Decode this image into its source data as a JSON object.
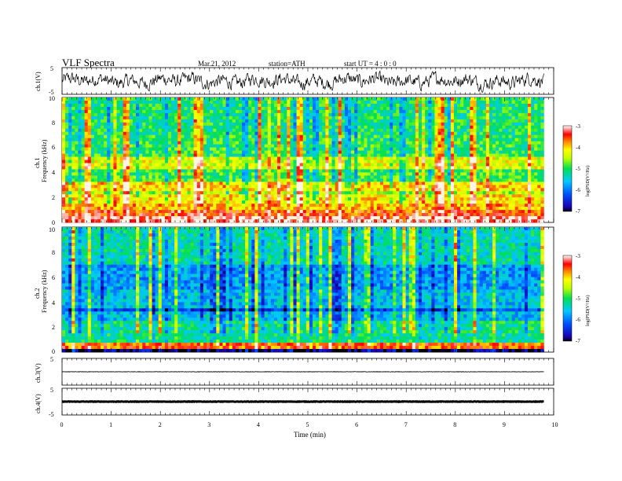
{
  "header": {
    "title": "VLF  Spectra",
    "date": "Mar.21, 2012",
    "station": "station=ATH",
    "start": "start  UT  =   4  : 0  : 0"
  },
  "chart_data": [
    {
      "id": "ch1-waveform",
      "type": "line",
      "ylabel": "ch.1(V)",
      "ylim": [
        -5,
        5
      ],
      "yticks": [
        "5",
        "-5"
      ],
      "xlim": [
        0,
        10
      ],
      "x_end": 9.8,
      "noise_amplitude_v": 2.5
    },
    {
      "id": "ch1-spectrogram",
      "type": "heatmap",
      "ylabel_ch": "ch.1",
      "ylabel": "Frequency  (kHz)",
      "ylim": [
        0,
        10
      ],
      "yticks": [
        "0",
        "2",
        "4",
        "6",
        "8",
        "10"
      ],
      "xlim": [
        0,
        10
      ],
      "x_end": 9.8,
      "colorbar": {
        "label": "log(PSD(V²/Hz)",
        "range": [
          -7,
          -3
        ],
        "ticks": [
          "-3",
          "-4",
          "-5",
          "-6",
          "-7"
        ]
      },
      "band_levels_log_psd": [
        {
          "f": [
            0.0,
            0.4
          ],
          "level": -3.1
        },
        {
          "f": [
            0.4,
            1.0
          ],
          "level": -3.5
        },
        {
          "f": [
            1.0,
            1.6
          ],
          "level": -3.9
        },
        {
          "f": [
            1.6,
            2.2
          ],
          "level": -4.1
        },
        {
          "f": [
            2.2,
            2.6
          ],
          "level": -4.6
        },
        {
          "f": [
            2.6,
            3.2
          ],
          "level": -4.0
        },
        {
          "f": [
            3.2,
            4.2
          ],
          "level": -4.9
        },
        {
          "f": [
            4.2,
            5.2
          ],
          "level": -4.3
        },
        {
          "f": [
            5.2,
            7.0
          ],
          "level": -5.0
        },
        {
          "f": [
            7.0,
            10.0
          ],
          "level": -5.1
        }
      ]
    },
    {
      "id": "ch2-spectrogram",
      "type": "heatmap",
      "ylabel_ch": "ch.2",
      "ylabel": "Frequency  (kHz)",
      "ylim": [
        0,
        10
      ],
      "yticks": [
        "0",
        "2",
        "4",
        "6",
        "8",
        "10"
      ],
      "xlim": [
        0,
        10
      ],
      "x_end": 9.8,
      "colorbar": {
        "label": "log(PSD(V²/Hz)",
        "range": [
          -7,
          -3
        ],
        "ticks": [
          "-3",
          "-4",
          "-5",
          "-6",
          "-7"
        ]
      },
      "band_levels_log_psd": [
        {
          "f": [
            0.0,
            0.3
          ],
          "level": -6.9
        },
        {
          "f": [
            0.3,
            0.8
          ],
          "level": -3.6
        },
        {
          "f": [
            0.8,
            2.5
          ],
          "level": -5.2
        },
        {
          "f": [
            2.5,
            3.2
          ],
          "level": -5.6
        },
        {
          "f": [
            3.2,
            3.6
          ],
          "level": -6.3
        },
        {
          "f": [
            3.6,
            5.0
          ],
          "level": -5.6
        },
        {
          "f": [
            5.0,
            7.0
          ],
          "level": -5.8
        },
        {
          "f": [
            7.0,
            10.0
          ],
          "level": -5.3
        }
      ]
    },
    {
      "id": "ch3-waveform",
      "type": "line",
      "ylabel": "ch.3(V)",
      "ylim": [
        -5,
        5
      ],
      "yticks": [
        "5"
      ],
      "xlim": [
        0,
        10
      ],
      "x_end": 9.8,
      "level_v": 0
    },
    {
      "id": "ch4-waveform",
      "type": "line",
      "ylabel": "ch.4(V)",
      "ylim": [
        -5,
        5
      ],
      "yticks": [
        "5",
        "-5"
      ],
      "xlim": [
        0,
        10
      ],
      "x_end": 9.8,
      "level_v": 0,
      "xlabel": "Time  (min)",
      "xticks": [
        "0",
        "1",
        "2",
        "3",
        "4",
        "5",
        "6",
        "7",
        "8",
        "9",
        "10"
      ]
    }
  ]
}
